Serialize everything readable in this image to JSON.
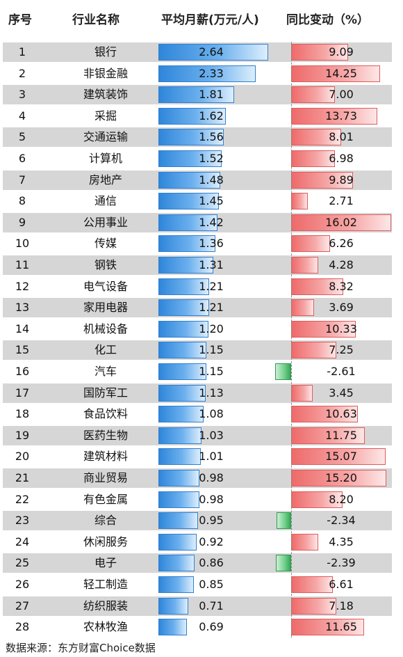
{
  "chart_data": {
    "type": "table",
    "columns": [
      "序号",
      "行业名称",
      "平均月薪(万元/人)",
      "同比变动（%）"
    ],
    "rows": [
      {
        "rank": "1",
        "industry": "银行",
        "salary": 2.64,
        "salary_label": "2.64",
        "change": 9.09,
        "change_label": "9.09"
      },
      {
        "rank": "2",
        "industry": "非银金融",
        "salary": 2.33,
        "salary_label": "2.33",
        "change": 14.25,
        "change_label": "14.25"
      },
      {
        "rank": "3",
        "industry": "建筑装饰",
        "salary": 1.81,
        "salary_label": "1.81",
        "change": 7.0,
        "change_label": "7.00"
      },
      {
        "rank": "4",
        "industry": "采掘",
        "salary": 1.62,
        "salary_label": "1.62",
        "change": 13.73,
        "change_label": "13.73"
      },
      {
        "rank": "5",
        "industry": "交通运输",
        "salary": 1.56,
        "salary_label": "1.56",
        "change": 8.01,
        "change_label": "8.01"
      },
      {
        "rank": "6",
        "industry": "计算机",
        "salary": 1.52,
        "salary_label": "1.52",
        "change": 6.98,
        "change_label": "6.98"
      },
      {
        "rank": "7",
        "industry": "房地产",
        "salary": 1.48,
        "salary_label": "1.48",
        "change": 9.89,
        "change_label": "9.89"
      },
      {
        "rank": "8",
        "industry": "通信",
        "salary": 1.45,
        "salary_label": "1.45",
        "change": 2.71,
        "change_label": "2.71"
      },
      {
        "rank": "9",
        "industry": "公用事业",
        "salary": 1.42,
        "salary_label": "1.42",
        "change": 16.02,
        "change_label": "16.02"
      },
      {
        "rank": "10",
        "industry": "传媒",
        "salary": 1.36,
        "salary_label": "1.36",
        "change": 6.26,
        "change_label": "6.26"
      },
      {
        "rank": "11",
        "industry": "钢铁",
        "salary": 1.31,
        "salary_label": "1.31",
        "change": 4.28,
        "change_label": "4.28"
      },
      {
        "rank": "12",
        "industry": "电气设备",
        "salary": 1.21,
        "salary_label": "1.21",
        "change": 8.32,
        "change_label": "8.32"
      },
      {
        "rank": "13",
        "industry": "家用电器",
        "salary": 1.21,
        "salary_label": "1.21",
        "change": 3.69,
        "change_label": "3.69"
      },
      {
        "rank": "14",
        "industry": "机械设备",
        "salary": 1.2,
        "salary_label": "1.20",
        "change": 10.33,
        "change_label": "10.33"
      },
      {
        "rank": "15",
        "industry": "化工",
        "salary": 1.15,
        "salary_label": "1.15",
        "change": 7.25,
        "change_label": "7.25"
      },
      {
        "rank": "16",
        "industry": "汽车",
        "salary": 1.15,
        "salary_label": "1.15",
        "change": -2.61,
        "change_label": "-2.61"
      },
      {
        "rank": "17",
        "industry": "国防军工",
        "salary": 1.13,
        "salary_label": "1.13",
        "change": 3.45,
        "change_label": "3.45"
      },
      {
        "rank": "18",
        "industry": "食品饮料",
        "salary": 1.08,
        "salary_label": "1.08",
        "change": 10.63,
        "change_label": "10.63"
      },
      {
        "rank": "19",
        "industry": "医药生物",
        "salary": 1.03,
        "salary_label": "1.03",
        "change": 11.75,
        "change_label": "11.75"
      },
      {
        "rank": "20",
        "industry": "建筑材料",
        "salary": 1.01,
        "salary_label": "1.01",
        "change": 15.07,
        "change_label": "15.07"
      },
      {
        "rank": "21",
        "industry": "商业贸易",
        "salary": 0.98,
        "salary_label": "0.98",
        "change": 15.2,
        "change_label": "15.20"
      },
      {
        "rank": "22",
        "industry": "有色金属",
        "salary": 0.98,
        "salary_label": "0.98",
        "change": 8.2,
        "change_label": "8.20"
      },
      {
        "rank": "23",
        "industry": "综合",
        "salary": 0.95,
        "salary_label": "0.95",
        "change": -2.34,
        "change_label": "-2.34"
      },
      {
        "rank": "24",
        "industry": "休闲服务",
        "salary": 0.92,
        "salary_label": "0.92",
        "change": 4.35,
        "change_label": "4.35"
      },
      {
        "rank": "25",
        "industry": "电子",
        "salary": 0.86,
        "salary_label": "0.86",
        "change": -2.39,
        "change_label": "-2.39"
      },
      {
        "rank": "26",
        "industry": "轻工制造",
        "salary": 0.85,
        "salary_label": "0.85",
        "change": 6.61,
        "change_label": "6.61"
      },
      {
        "rank": "27",
        "industry": "纺织服装",
        "salary": 0.71,
        "salary_label": "0.71",
        "change": 7.18,
        "change_label": "7.18"
      },
      {
        "rank": "28",
        "industry": "农林牧渔",
        "salary": 0.69,
        "salary_label": "0.69",
        "change": 11.65,
        "change_label": "11.65"
      }
    ],
    "colors": {
      "salary_bar": "#2f86da",
      "positive_bar": "#ee6a6a",
      "negative_bar": "#35a655",
      "row_shade": "#d6d6d6"
    }
  },
  "source_note": "数据来源：东方财富Choice数据"
}
